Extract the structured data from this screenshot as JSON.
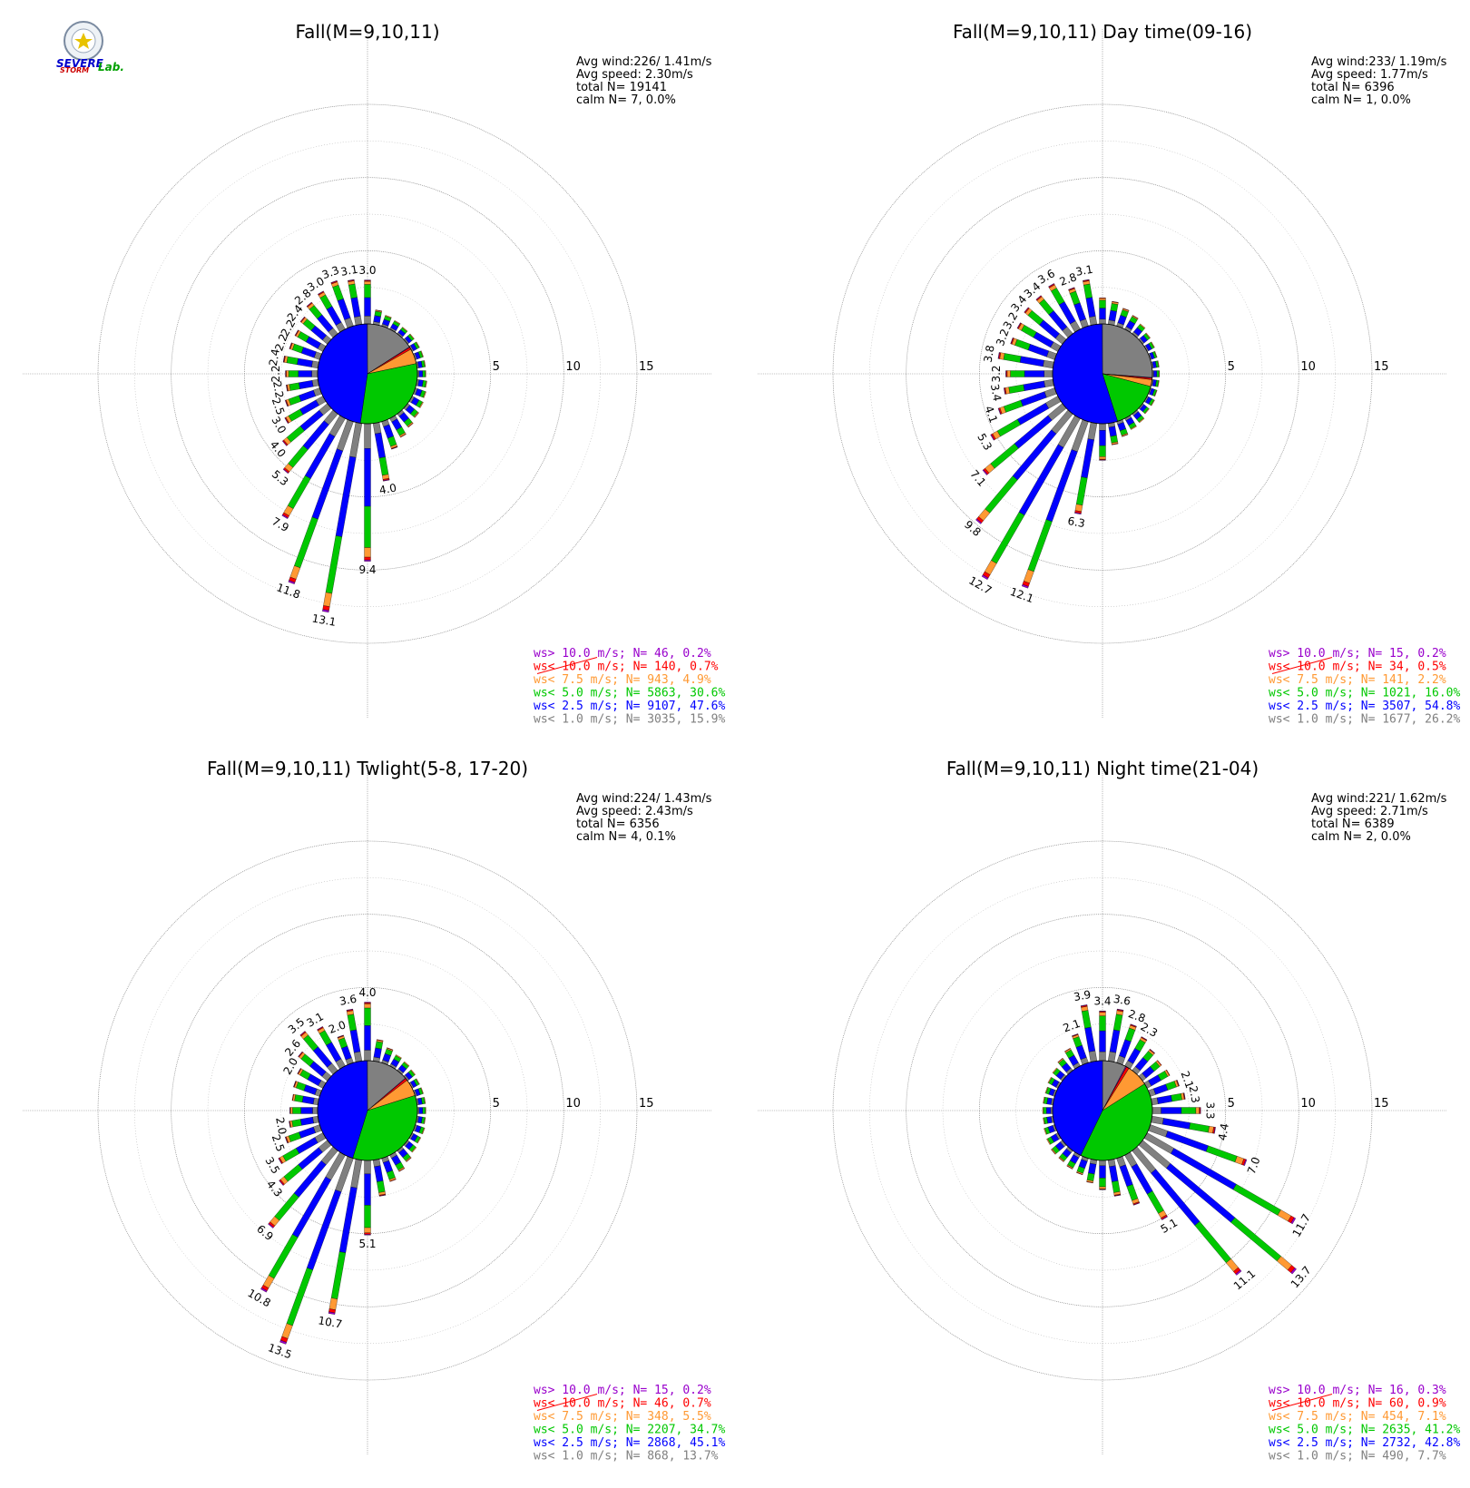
{
  "logo": {
    "line1": "SEVERE",
    "line2": "STORM",
    "line3": "Lab."
  },
  "colors": {
    "calm_lt1": "#808080",
    "lt2_5": "#0000ff",
    "lt5": "#00c800",
    "lt7_5": "#ff9933",
    "lt10": "#ff0000",
    "gt10": "#9900cc"
  },
  "chart_data": [
    {
      "type": "windrose",
      "title": "Fall(M=9,10,11)",
      "rings": [
        "5",
        "10",
        "15"
      ],
      "stats": [
        "Avg wind:226/ 1.41m/s",
        "Avg speed: 2.30m/s",
        "total N=      19141",
        "calm N=      7,   0.0%"
      ],
      "legend": [
        "ws> 10.0 m/s; N=    46,  0.2%",
        "ws< 10.0 m/s; N=   140,  0.7%",
        "ws<  7.5 m/s; N=   943,  4.9%",
        "ws<  5.0 m/s; N=  5863, 30.6%",
        "ws<  2.5 m/s; N=  9107, 47.6%",
        "ws<  1.0 m/s; N=  3035, 15.9%"
      ],
      "pie": [
        15.9,
        47.6,
        30.6,
        4.9,
        0.7,
        0.2
      ],
      "labels": [
        {
          "deg": 0,
          "text": "3.0"
        },
        {
          "deg": 10,
          "text": "3.1"
        },
        {
          "deg": 20,
          "text": "3.3"
        },
        {
          "deg": 30,
          "text": "3.0"
        },
        {
          "deg": 40,
          "text": "2.8"
        },
        {
          "deg": 50,
          "text": "2.4"
        },
        {
          "deg": 60,
          "text": "2.2"
        },
        {
          "deg": 70,
          "text": "2.2"
        },
        {
          "deg": 80,
          "text": "2.4"
        },
        {
          "deg": 90,
          "text": "2.2"
        },
        {
          "deg": 100,
          "text": "2.2"
        },
        {
          "deg": 110,
          "text": "2.5"
        },
        {
          "deg": 120,
          "text": "3.0"
        },
        {
          "deg": 130,
          "text": "4.0"
        },
        {
          "deg": 140,
          "text": "5.3"
        },
        {
          "deg": 150,
          "text": "7.9"
        },
        {
          "deg": 160,
          "text": "11.8"
        },
        {
          "deg": 170,
          "text": "13.1"
        },
        {
          "deg": 180,
          "text": "9.4"
        },
        {
          "deg": 190,
          "text": "4.0"
        }
      ],
      "petals": [
        [
          0,
          3.0
        ],
        [
          10,
          3.1
        ],
        [
          20,
          3.3
        ],
        [
          30,
          3.0
        ],
        [
          40,
          2.8
        ],
        [
          50,
          2.4
        ],
        [
          60,
          2.2
        ],
        [
          70,
          2.2
        ],
        [
          80,
          2.4
        ],
        [
          90,
          2.2
        ],
        [
          100,
          2.2
        ],
        [
          110,
          2.5
        ],
        [
          120,
          3.0
        ],
        [
          130,
          4.0
        ],
        [
          140,
          5.3
        ],
        [
          150,
          7.9
        ],
        [
          160,
          11.8
        ],
        [
          170,
          13.1
        ],
        [
          180,
          9.4
        ],
        [
          190,
          4.0
        ],
        [
          200,
          2.0
        ],
        [
          210,
          1.5
        ],
        [
          220,
          1.2
        ],
        [
          230,
          1.0
        ],
        [
          240,
          0.9
        ],
        [
          250,
          0.8
        ],
        [
          260,
          0.7
        ],
        [
          270,
          0.6
        ],
        [
          280,
          0.6
        ],
        [
          290,
          0.6
        ],
        [
          300,
          0.6
        ],
        [
          310,
          0.6
        ],
        [
          320,
          0.6
        ],
        [
          330,
          0.7
        ],
        [
          340,
          0.8
        ],
        [
          350,
          1.0
        ]
      ]
    },
    {
      "type": "windrose",
      "title": "Fall(M=9,10,11) Day time(09-16)",
      "rings": [
        "5",
        "10",
        "15"
      ],
      "stats": [
        "Avg wind:233/ 1.19m/s",
        "Avg speed: 1.77m/s",
        "total N=       6396",
        "calm N=      1,   0.0%"
      ],
      "legend": [
        "ws> 10.0 m/s; N=    15,  0.2%",
        "ws< 10.0 m/s; N=    34,  0.5%",
        "ws<  7.5 m/s; N=   141,  2.2%",
        "ws<  5.0 m/s; N=  1021, 16.0%",
        "ws<  2.5 m/s; N=  3507, 54.8%",
        "ws<  1.0 m/s; N=  1677, 26.2%"
      ],
      "pie": [
        26.2,
        54.8,
        16.0,
        2.2,
        0.5,
        0.2
      ],
      "labels": [
        {
          "deg": 10,
          "text": "3.1"
        },
        {
          "deg": 20,
          "text": "2.8"
        },
        {
          "deg": 30,
          "text": "3.6"
        },
        {
          "deg": 40,
          "text": "3.4"
        },
        {
          "deg": 50,
          "text": "3.4"
        },
        {
          "deg": 60,
          "text": "3.2"
        },
        {
          "deg": 70,
          "text": "3.2"
        },
        {
          "deg": 80,
          "text": "3.8"
        },
        {
          "deg": 90,
          "text": "3.2"
        },
        {
          "deg": 100,
          "text": "3.4"
        },
        {
          "deg": 110,
          "text": "4.1"
        },
        {
          "deg": 120,
          "text": "5.3"
        },
        {
          "deg": 130,
          "text": "7.1"
        },
        {
          "deg": 140,
          "text": "9.8"
        },
        {
          "deg": 150,
          "text": "12.7"
        },
        {
          "deg": 160,
          "text": "12.1"
        },
        {
          "deg": 170,
          "text": "6.3"
        }
      ],
      "petals": [
        [
          0,
          1.8
        ],
        [
          10,
          3.1
        ],
        [
          20,
          2.8
        ],
        [
          30,
          3.6
        ],
        [
          40,
          3.4
        ],
        [
          50,
          3.4
        ],
        [
          60,
          3.2
        ],
        [
          70,
          3.2
        ],
        [
          80,
          3.8
        ],
        [
          90,
          3.2
        ],
        [
          100,
          3.4
        ],
        [
          110,
          4.1
        ],
        [
          120,
          5.3
        ],
        [
          130,
          7.1
        ],
        [
          140,
          9.8
        ],
        [
          150,
          12.7
        ],
        [
          160,
          12.1
        ],
        [
          170,
          6.3
        ],
        [
          180,
          2.5
        ],
        [
          190,
          1.5
        ],
        [
          200,
          1.1
        ],
        [
          210,
          0.9
        ],
        [
          220,
          0.8
        ],
        [
          230,
          0.6
        ],
        [
          240,
          0.6
        ],
        [
          250,
          0.5
        ],
        [
          260,
          0.5
        ],
        [
          270,
          0.5
        ],
        [
          280,
          0.5
        ],
        [
          290,
          0.5
        ],
        [
          300,
          0.6
        ],
        [
          310,
          0.7
        ],
        [
          320,
          0.9
        ],
        [
          330,
          1.1
        ],
        [
          340,
          1.3
        ],
        [
          350,
          1.6
        ]
      ]
    },
    {
      "type": "windrose",
      "title": "Fall(M=9,10,11) Twlight(5-8, 17-20)",
      "rings": [
        "5",
        "10",
        "15"
      ],
      "stats": [
        "Avg wind:224/ 1.43m/s",
        "Avg speed: 2.43m/s",
        "total N=       6356",
        "calm N=      4,   0.1%"
      ],
      "legend": [
        "ws> 10.0 m/s; N=    15,  0.2%",
        "ws< 10.0 m/s; N=    46,  0.7%",
        "ws<  7.5 m/s; N=   348,  5.5%",
        "ws<  5.0 m/s; N=  2207, 34.7%",
        "ws<  2.5 m/s; N=  2868, 45.1%",
        "ws<  1.0 m/s; N=   868, 13.7%"
      ],
      "pie": [
        13.7,
        45.1,
        34.7,
        5.5,
        0.7,
        0.2
      ],
      "labels": [
        {
          "deg": 0,
          "text": "4.0"
        },
        {
          "deg": 10,
          "text": "3.6"
        },
        {
          "deg": 20,
          "text": "2.0"
        },
        {
          "deg": 30,
          "text": "3.1"
        },
        {
          "deg": 40,
          "text": "3.5"
        },
        {
          "deg": 50,
          "text": "2.6"
        },
        {
          "deg": 60,
          "text": "2.0"
        },
        {
          "deg": 100,
          "text": "2.0"
        },
        {
          "deg": 110,
          "text": "2.5"
        },
        {
          "deg": 120,
          "text": "3.5"
        },
        {
          "deg": 130,
          "text": "4.3"
        },
        {
          "deg": 140,
          "text": "6.9"
        },
        {
          "deg": 150,
          "text": "10.8"
        },
        {
          "deg": 160,
          "text": "13.5"
        },
        {
          "deg": 170,
          "text": "10.7"
        },
        {
          "deg": 180,
          "text": "5.1"
        }
      ],
      "petals": [
        [
          0,
          4.0
        ],
        [
          10,
          3.6
        ],
        [
          20,
          2.0
        ],
        [
          30,
          3.1
        ],
        [
          40,
          3.5
        ],
        [
          50,
          2.6
        ],
        [
          60,
          2.0
        ],
        [
          70,
          1.9
        ],
        [
          80,
          1.8
        ],
        [
          90,
          1.9
        ],
        [
          100,
          2.0
        ],
        [
          110,
          2.5
        ],
        [
          120,
          3.5
        ],
        [
          130,
          4.3
        ],
        [
          140,
          6.9
        ],
        [
          150,
          10.8
        ],
        [
          160,
          13.5
        ],
        [
          170,
          10.7
        ],
        [
          180,
          5.1
        ],
        [
          190,
          2.5
        ],
        [
          200,
          1.7
        ],
        [
          210,
          1.3
        ],
        [
          220,
          1.0
        ],
        [
          230,
          0.8
        ],
        [
          240,
          0.7
        ],
        [
          250,
          0.7
        ],
        [
          260,
          0.6
        ],
        [
          270,
          0.6
        ],
        [
          280,
          0.6
        ],
        [
          290,
          0.6
        ],
        [
          300,
          0.6
        ],
        [
          310,
          0.7
        ],
        [
          320,
          0.8
        ],
        [
          330,
          0.9
        ],
        [
          340,
          1.1
        ],
        [
          350,
          1.5
        ]
      ]
    },
    {
      "type": "windrose",
      "title": "Fall(M=9,10,11) Night time(21-04)",
      "rings": [
        "5",
        "10",
        "15"
      ],
      "stats": [
        "Avg wind:221/ 1.62m/s",
        "Avg speed: 2.71m/s",
        "total N=       6389",
        "calm N=      2,   0.0%"
      ],
      "legend": [
        "ws> 10.0 m/s; N=    16,  0.3%",
        "ws< 10.0 m/s; N=    60,  0.9%",
        "ws<  7.5 m/s; N=   454,  7.1%",
        "ws<  5.0 m/s; N=  2635, 41.2%",
        "ws<  2.5 m/s; N=  2732, 42.8%",
        "ws<  1.0 m/s; N=   490,  7.7%"
      ],
      "pie": [
        7.7,
        42.8,
        41.2,
        7.1,
        0.9,
        0.3
      ],
      "labels": [
        {
          "deg": 0,
          "text": "3.4"
        },
        {
          "deg": 10,
          "text": "3.9"
        },
        {
          "deg": 20,
          "text": "2.1"
        },
        {
          "deg": 350,
          "text": "3.6"
        },
        {
          "deg": 340,
          "text": "2.8"
        },
        {
          "deg": 330,
          "text": "2.3"
        },
        {
          "deg": 290,
          "text": "2.1"
        },
        {
          "deg": 280,
          "text": "2.3"
        },
        {
          "deg": 270,
          "text": "3.3"
        },
        {
          "deg": 260,
          "text": "4.4"
        },
        {
          "deg": 250,
          "text": "7.0"
        },
        {
          "deg": 240,
          "text": "11.7"
        },
        {
          "deg": 230,
          "text": "13.7"
        },
        {
          "deg": 220,
          "text": "11.1"
        },
        {
          "deg": 210,
          "text": "5.1"
        }
      ],
      "petals": [
        [
          0,
          3.4
        ],
        [
          10,
          3.9
        ],
        [
          20,
          2.1
        ],
        [
          30,
          1.4
        ],
        [
          40,
          1.1
        ],
        [
          50,
          0.9
        ],
        [
          60,
          0.8
        ],
        [
          70,
          0.7
        ],
        [
          80,
          0.7
        ],
        [
          90,
          0.7
        ],
        [
          100,
          0.7
        ],
        [
          110,
          0.8
        ],
        [
          120,
          0.9
        ],
        [
          130,
          1.0
        ],
        [
          140,
          1.0
        ],
        [
          150,
          1.1
        ],
        [
          160,
          1.2
        ],
        [
          170,
          1.6
        ],
        [
          180,
          2.0
        ],
        [
          190,
          2.5
        ],
        [
          200,
          3.4
        ],
        [
          210,
          5.1
        ],
        [
          220,
          11.1
        ],
        [
          230,
          13.7
        ],
        [
          240,
          11.7
        ],
        [
          250,
          7.0
        ],
        [
          260,
          4.4
        ],
        [
          270,
          3.3
        ],
        [
          280,
          2.3
        ],
        [
          290,
          2.1
        ],
        [
          300,
          1.8
        ],
        [
          310,
          1.7
        ],
        [
          320,
          1.9
        ],
        [
          330,
          2.3
        ],
        [
          340,
          2.8
        ],
        [
          350,
          3.6
        ]
      ]
    }
  ]
}
